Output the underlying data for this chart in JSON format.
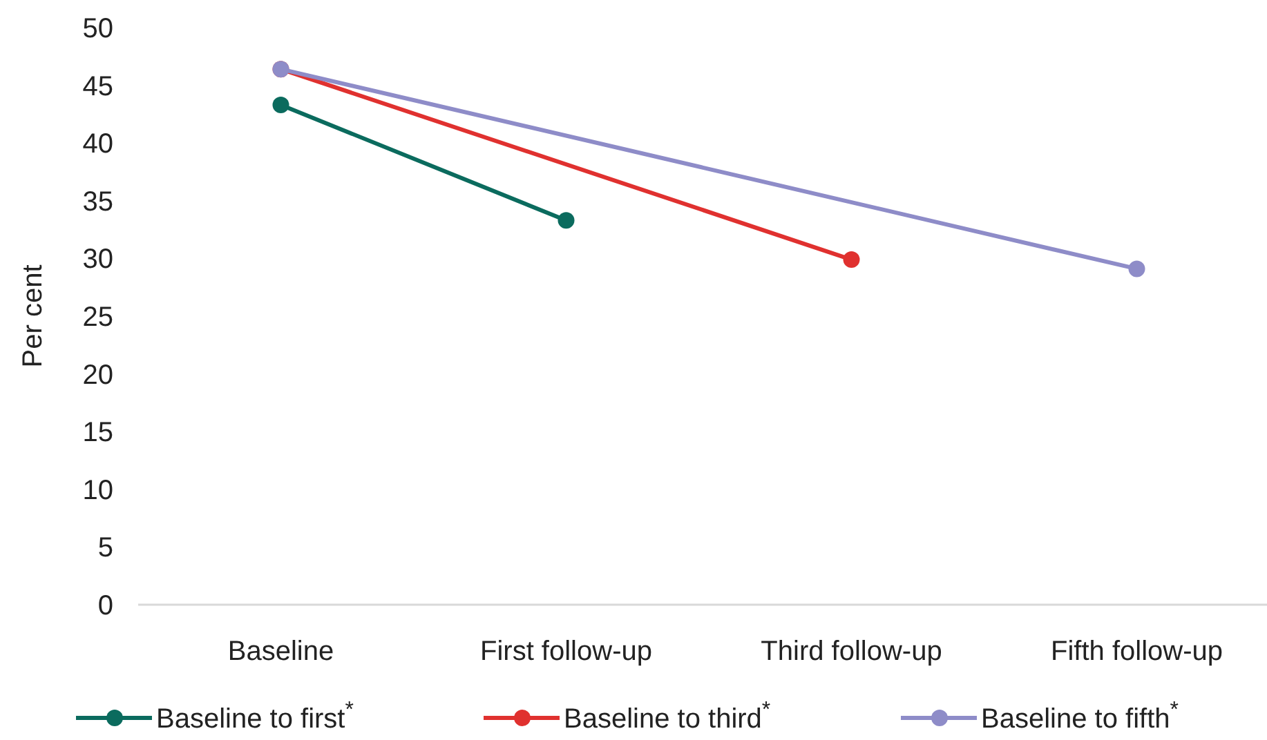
{
  "chart_data": {
    "type": "line",
    "ylabel": "Per cent",
    "categories": [
      "Baseline",
      "First follow-up",
      "Third follow-up",
      "Fifth follow-up"
    ],
    "ylim": [
      0,
      50
    ],
    "yticks": [
      0,
      5,
      10,
      15,
      20,
      25,
      30,
      35,
      40,
      45,
      50
    ],
    "grid": false,
    "legend": "bottom",
    "marker": "circle",
    "line_style": "solid",
    "series": [
      {
        "name": "Baseline to first$^{*}$",
        "color": "#0b6b5e",
        "values": [
          43.3,
          33.3,
          null,
          null
        ]
      },
      {
        "name": "Baseline to third$^{*}$",
        "color": "#e0312f",
        "values": [
          46.4,
          null,
          29.9,
          null
        ]
      },
      {
        "name": "Baseline to fifth$^{*}$",
        "color": "#8e8cc8",
        "values": [
          46.4,
          null,
          null,
          29.1
        ]
      }
    ]
  }
}
